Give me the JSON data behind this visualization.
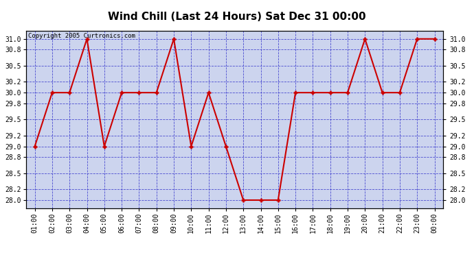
{
  "title": "Wind Chill (Last 24 Hours) Sat Dec 31 00:00",
  "copyright": "Copyright 2005 Curtronics.com",
  "x_labels": [
    "01:00",
    "02:00",
    "03:00",
    "04:00",
    "05:00",
    "06:00",
    "07:00",
    "08:00",
    "09:00",
    "10:00",
    "11:00",
    "12:00",
    "13:00",
    "14:00",
    "15:00",
    "16:00",
    "17:00",
    "18:00",
    "19:00",
    "20:00",
    "21:00",
    "22:00",
    "23:00",
    "00:00"
  ],
  "y_values": [
    29.0,
    30.0,
    30.0,
    31.0,
    29.0,
    30.0,
    30.0,
    30.0,
    31.0,
    29.0,
    30.0,
    29.0,
    28.0,
    28.0,
    28.0,
    30.0,
    30.0,
    30.0,
    30.0,
    31.0,
    30.0,
    30.0,
    31.0,
    31.0
  ],
  "ylim_min": 27.85,
  "ylim_max": 31.15,
  "yticks": [
    28.0,
    28.2,
    28.5,
    28.8,
    29.0,
    29.2,
    29.5,
    29.8,
    30.0,
    30.2,
    30.5,
    30.8,
    31.0
  ],
  "line_color": "#cc0000",
  "bg_color": "#ccd4ee",
  "grid_color": "#3333cc",
  "title_fontsize": 11,
  "copyright_fontsize": 6.5,
  "tick_fontsize": 7,
  "outer_bg": "#ffffff",
  "border_color": "#000000"
}
